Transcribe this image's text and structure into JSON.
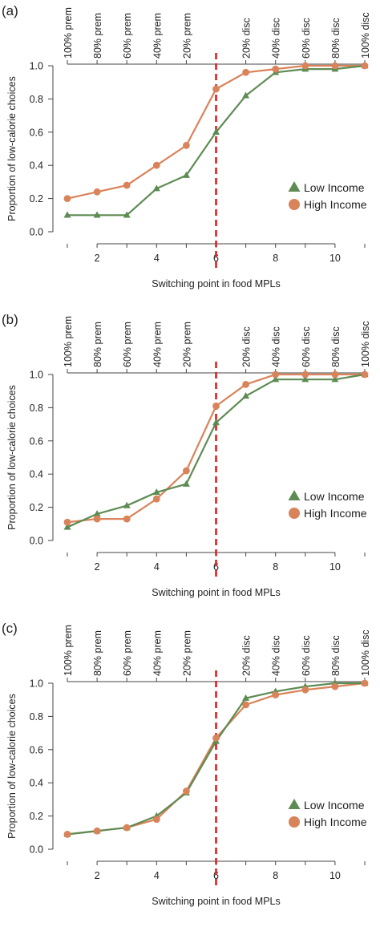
{
  "chart_data": [
    {
      "type": "line",
      "panel_label": "(a)",
      "xlabel": "Switching point in food MPLs",
      "ylabel": "Proportion of low-calorie choices",
      "xlim": [
        1,
        11
      ],
      "ylim": [
        0,
        1
      ],
      "x_ticks": [
        "2",
        "4",
        "6",
        "8",
        "10"
      ],
      "y_ticks": [
        "0.0",
        "0.2",
        "0.4",
        "0.6",
        "0.8",
        "1.0"
      ],
      "top_labels": [
        "100% prem",
        "80% prem",
        "60% prem",
        "40% prem",
        "20% prem",
        "20% disc",
        "40% disc",
        "60% disc",
        "80% disc",
        "100% disc"
      ],
      "reference_line_x": 6,
      "legend_position": "right",
      "x": [
        1,
        2,
        3,
        4,
        5,
        6,
        7,
        8,
        9,
        10,
        11
      ],
      "series": [
        {
          "name": "Low Income",
          "color": "#5e8b53",
          "marker": "triangle",
          "values": [
            0.1,
            0.1,
            0.1,
            0.26,
            0.34,
            0.6,
            0.82,
            0.96,
            0.98,
            0.98,
            1.0
          ]
        },
        {
          "name": "High Income",
          "color": "#d9835a",
          "marker": "circle",
          "values": [
            0.2,
            0.24,
            0.28,
            0.4,
            0.52,
            0.86,
            0.96,
            0.98,
            1.0,
            1.0,
            1.0
          ]
        }
      ]
    },
    {
      "type": "line",
      "panel_label": "(b)",
      "xlabel": "Switching point in food MPLs",
      "ylabel": "Proportion of low-calorie choices",
      "xlim": [
        1,
        11
      ],
      "ylim": [
        0,
        1
      ],
      "x_ticks": [
        "2",
        "4",
        "6",
        "8",
        "10"
      ],
      "y_ticks": [
        "0.0",
        "0.2",
        "0.4",
        "0.6",
        "0.8",
        "1.0"
      ],
      "top_labels": [
        "100% prem",
        "80% prem",
        "60% prem",
        "40% prem",
        "20% prem",
        "20% disc",
        "40% disc",
        "60% disc",
        "80% disc",
        "100% disc"
      ],
      "reference_line_x": 6,
      "legend_position": "right",
      "x": [
        1,
        2,
        3,
        4,
        5,
        6,
        7,
        8,
        9,
        10,
        11
      ],
      "series": [
        {
          "name": "Low Income",
          "color": "#5e8b53",
          "marker": "triangle",
          "values": [
            0.08,
            0.16,
            0.21,
            0.29,
            0.34,
            0.71,
            0.87,
            0.97,
            0.97,
            0.97,
            1.0
          ]
        },
        {
          "name": "High Income",
          "color": "#d9835a",
          "marker": "circle",
          "values": [
            0.11,
            0.13,
            0.13,
            0.25,
            0.42,
            0.81,
            0.94,
            1.0,
            1.0,
            1.0,
            1.0
          ]
        }
      ]
    },
    {
      "type": "line",
      "panel_label": "(c)",
      "xlabel": "Switching point in food MPLs",
      "ylabel": "Proportion of low-calorie choices",
      "xlim": [
        1,
        11
      ],
      "ylim": [
        0,
        1
      ],
      "x_ticks": [
        "2",
        "4",
        "6",
        "8",
        "10"
      ],
      "y_ticks": [
        "0.0",
        "0.2",
        "0.4",
        "0.6",
        "0.8",
        "1.0"
      ],
      "top_labels": [
        "100% prem",
        "80% prem",
        "60% prem",
        "40% prem",
        "20% prem",
        "20% disc",
        "40% disc",
        "60% disc",
        "80% disc",
        "100% disc"
      ],
      "reference_line_x": 6,
      "legend_position": "right",
      "x": [
        1,
        2,
        3,
        4,
        5,
        6,
        7,
        8,
        9,
        10,
        11
      ],
      "series": [
        {
          "name": "Low Income",
          "color": "#5e8b53",
          "marker": "triangle",
          "values": [
            0.09,
            0.11,
            0.13,
            0.2,
            0.34,
            0.65,
            0.91,
            0.95,
            0.98,
            1.0,
            1.0
          ]
        },
        {
          "name": "High Income",
          "color": "#d9835a",
          "marker": "circle",
          "values": [
            0.09,
            0.11,
            0.13,
            0.18,
            0.35,
            0.67,
            0.87,
            0.93,
            0.96,
            0.98,
            1.0
          ]
        }
      ]
    }
  ]
}
